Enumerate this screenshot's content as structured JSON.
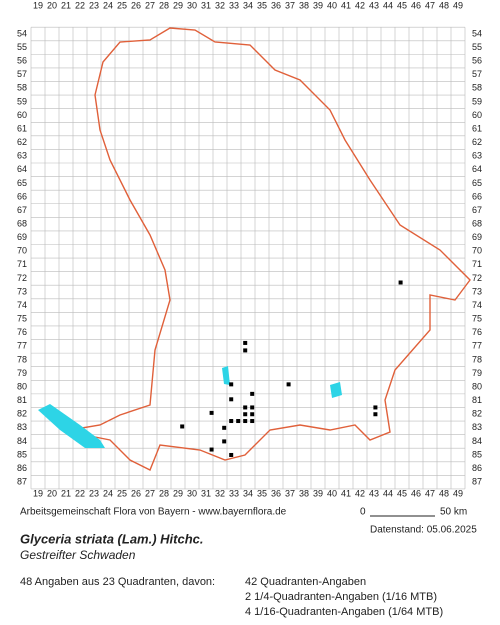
{
  "header": {
    "credit": "Arbeitsgemeinschaft Flora von Bayern - www.bayernflora.de",
    "date": "Datenstand: 05.06.2025",
    "scale_start": "0",
    "scale_end": "50 km"
  },
  "species": {
    "name": "Glyceria striata (Lam.) Hitchc.",
    "common": "Gestreifter Schwaden"
  },
  "stats": {
    "summary": "48 Angaben aus 23 Quadranten, davon:",
    "lines": [
      "42 Quadranten-Angaben",
      "2 1/4-Quadranten-Angaben (1/16 MTB)",
      "4 1/16-Quadranten-Angaben (1/64 MTB)"
    ]
  },
  "grid": {
    "columns": [
      19,
      20,
      21,
      22,
      23,
      24,
      25,
      26,
      27,
      28,
      29,
      30,
      31,
      32,
      33,
      34,
      35,
      36,
      37,
      38,
      39,
      40,
      41,
      42,
      43,
      44,
      45,
      46,
      47,
      48,
      49
    ],
    "rows": [
      54,
      55,
      56,
      57,
      58,
      59,
      60,
      61,
      62,
      63,
      64,
      65,
      66,
      67,
      68,
      69,
      70,
      71,
      72,
      73,
      74,
      75,
      76,
      77,
      78,
      79,
      80,
      81,
      82,
      83,
      84,
      85,
      86,
      87
    ]
  },
  "points": [
    {
      "col": 44.9,
      "row": 72.3
    },
    {
      "col": 33.8,
      "row": 76.75
    },
    {
      "col": 33.8,
      "row": 77.3
    },
    {
      "col": 32.8,
      "row": 79.8
    },
    {
      "col": 36.9,
      "row": 79.8
    },
    {
      "col": 34.3,
      "row": 80.5
    },
    {
      "col": 32.8,
      "row": 80.9
    },
    {
      "col": 33.8,
      "row": 81.5
    },
    {
      "col": 34.3,
      "row": 81.5
    },
    {
      "col": 31.4,
      "row": 81.9
    },
    {
      "col": 33.8,
      "row": 82
    },
    {
      "col": 34.3,
      "row": 82
    },
    {
      "col": 43.1,
      "row": 81.5
    },
    {
      "col": 43.1,
      "row": 82
    },
    {
      "col": 32.8,
      "row": 82.5
    },
    {
      "col": 33.3,
      "row": 82.5
    },
    {
      "col": 33.8,
      "row": 82.5
    },
    {
      "col": 34.3,
      "row": 82.5
    },
    {
      "col": 29.3,
      "row": 82.9
    },
    {
      "col": 32.3,
      "row": 83
    },
    {
      "col": 32.3,
      "row": 84
    },
    {
      "col": 31.4,
      "row": 84.6
    },
    {
      "col": 32.8,
      "row": 85
    }
  ]
}
